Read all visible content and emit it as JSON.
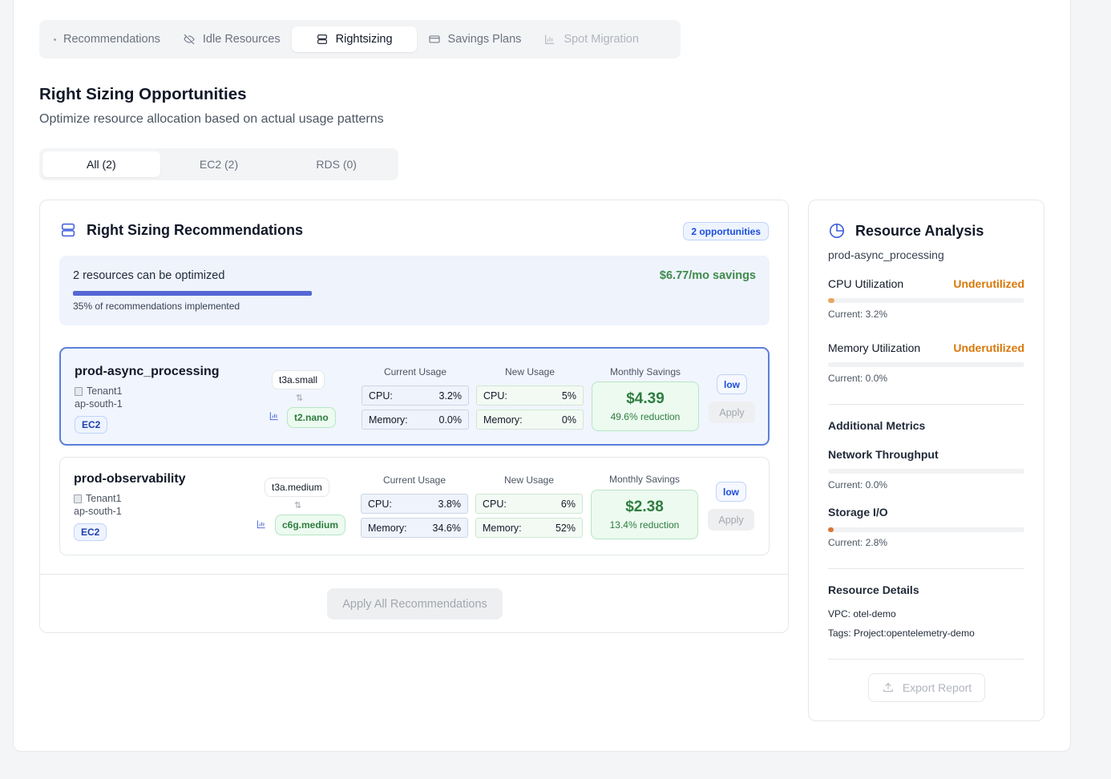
{
  "top_tabs": [
    {
      "label": "Recommendations",
      "icon": "dot-icon"
    },
    {
      "label": "Idle Resources",
      "icon": "eye-off-icon"
    },
    {
      "label": "Rightsizing",
      "icon": "server-icon"
    },
    {
      "label": "Savings Plans",
      "icon": "credit-card-icon"
    },
    {
      "label": "Spot Migration",
      "icon": "bar-chart-icon"
    }
  ],
  "page": {
    "title": "Right Sizing Opportunities",
    "subtitle": "Optimize resource allocation based on actual usage patterns"
  },
  "filter_tabs": [
    "All (2)",
    "EC2 (2)",
    "RDS (0)"
  ],
  "recs_card": {
    "title": "Right Sizing Recommendations",
    "badge": "2 opportunities",
    "summary": {
      "text": "2 resources can be optimized",
      "progress_text": "35% of recommendations implemented",
      "progress": 0.35,
      "savings": "$6.77/mo savings"
    },
    "col_current": "Current Usage",
    "col_new": "New Usage",
    "col_savings": "Monthly Savings",
    "items": [
      {
        "name": "prod-async_processing",
        "tenant": "Tenant1",
        "region": "ap-south-1",
        "type": "EC2",
        "old_instance": "t3a.small",
        "new_instance": "t2.nano",
        "arrow": "⇅",
        "cur_cpu_label": "CPU:",
        "cur_cpu": "3.2%",
        "cur_mem_label": "Memory:",
        "cur_mem": "0.0%",
        "new_cpu_label": "CPU:",
        "new_cpu": "5%",
        "new_mem_label": "Memory:",
        "new_mem": "0%",
        "savings": "$4.39",
        "reduction": "49.6% reduction",
        "priority": "low",
        "apply": "Apply"
      },
      {
        "name": "prod-observability",
        "tenant": "Tenant1",
        "region": "ap-south-1",
        "type": "EC2",
        "old_instance": "t3a.medium",
        "new_instance": "c6g.medium",
        "arrow": "⇅",
        "cur_cpu_label": "CPU:",
        "cur_cpu": "3.8%",
        "cur_mem_label": "Memory:",
        "cur_mem": "34.6%",
        "new_cpu_label": "CPU:",
        "new_cpu": "6%",
        "new_mem_label": "Memory:",
        "new_mem": "52%",
        "savings": "$2.38",
        "reduction": "13.4% reduction",
        "priority": "low",
        "apply": "Apply"
      }
    ],
    "apply_all": "Apply All Recommendations"
  },
  "analysis": {
    "title": "Resource Analysis",
    "resource": "prod-async_processing",
    "cpu": {
      "label": "CPU Utilization",
      "state": "Underutilized",
      "current": "Current: 3.2%",
      "value": 0.032
    },
    "memory": {
      "label": "Memory Utilization",
      "state": "Underutilized",
      "current": "Current: 0.0%",
      "value": 0.0
    },
    "additional": "Additional Metrics",
    "network": {
      "label": "Network Throughput",
      "current": "Current: 0.0%",
      "value": 0.0
    },
    "storage": {
      "label": "Storage I/O",
      "current": "Current: 2.8%",
      "value": 0.028
    },
    "details_title": "Resource Details",
    "vpc": "VPC: otel-demo",
    "tags": "Tags: Project:opentelemetry-demo",
    "export": "Export Report"
  },
  "colors": {
    "accent": "#3b5bdb",
    "success": "#2f7d3f",
    "warning": "#d97706"
  }
}
